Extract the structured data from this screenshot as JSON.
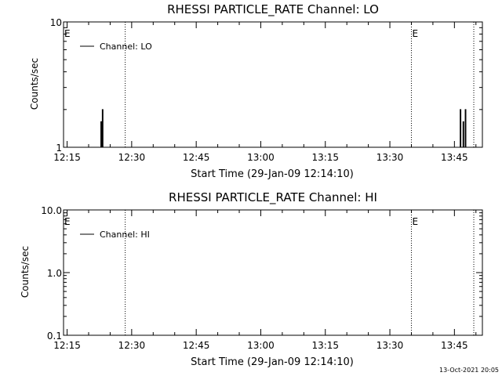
{
  "chart_data": [
    {
      "type": "line",
      "title": "RHESSI PARTICLE_RATE Channel: LO",
      "xlabel": "Start Time (29-Jan-09 12:14:10)",
      "ylabel": "Counts/sec",
      "y_scale": "log",
      "ylim": [
        1,
        10
      ],
      "xlim": [
        "12:14:10",
        "13:51:30"
      ],
      "x_ticks": [
        "12:15",
        "12:30",
        "12:45",
        "13:00",
        "13:15",
        "13:30",
        "13:45"
      ],
      "y_ticks": [
        "1",
        "10"
      ],
      "legend": {
        "position": "top-left",
        "entries": [
          "Channel: LO"
        ]
      },
      "event_markers": [
        {
          "time": "12:14:10",
          "label": "E",
          "style": "none"
        },
        {
          "time": "12:28:30",
          "label": "",
          "style": "dotted"
        },
        {
          "time": "13:35:00",
          "label": "E",
          "style": "dotted"
        },
        {
          "time": "13:49:30",
          "label": "",
          "style": "dotted"
        }
      ],
      "series": [
        {
          "name": "Channel: LO",
          "points": [
            [
              "12:22:40",
              1
            ],
            [
              "12:22:50",
              1.6
            ],
            [
              "12:23:00",
              1
            ],
            [
              "12:23:10",
              2.0
            ],
            [
              "12:23:20",
              1
            ],
            [
              "13:46:10",
              1
            ],
            [
              "13:46:20",
              2.0
            ],
            [
              "13:46:30",
              1
            ],
            [
              "13:47:00",
              1.6
            ],
            [
              "13:47:10",
              1
            ],
            [
              "13:47:30",
              2.0
            ],
            [
              "13:47:40",
              1
            ]
          ]
        }
      ]
    },
    {
      "type": "line",
      "title": "RHESSI PARTICLE_RATE Channel: HI",
      "xlabel": "Start Time (29-Jan-09 12:14:10)",
      "ylabel": "Counts/sec",
      "y_scale": "log",
      "ylim": [
        0.1,
        10.0
      ],
      "xlim": [
        "12:14:10",
        "13:51:30"
      ],
      "x_ticks": [
        "12:15",
        "12:30",
        "12:45",
        "13:00",
        "13:15",
        "13:30",
        "13:45"
      ],
      "y_ticks": [
        "0.1",
        "1.0",
        "10.0"
      ],
      "legend": {
        "position": "top-left",
        "entries": [
          "Channel: HI"
        ]
      },
      "event_markers": [
        {
          "time": "12:14:10",
          "label": "E",
          "style": "none"
        },
        {
          "time": "12:28:30",
          "label": "",
          "style": "dotted"
        },
        {
          "time": "13:35:00",
          "label": "E",
          "style": "dotted"
        },
        {
          "time": "13:49:30",
          "label": "",
          "style": "dotted"
        }
      ],
      "series": [
        {
          "name": "Channel: HI",
          "points": []
        }
      ]
    }
  ],
  "footer": {
    "timestamp": "13-Oct-2021 20:05"
  }
}
